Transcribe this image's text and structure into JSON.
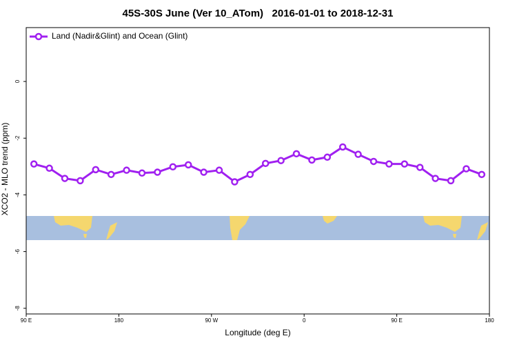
{
  "chart_data": {
    "type": "line",
    "title": "45S-30S June (Ver 10_ATom)   2016-01-01 to 2018-12-31",
    "x_label": "Longitude (deg E)",
    "y_label": "XCO2 - MLO trend (ppm)",
    "x": [
      97.5,
      112.5,
      127.5,
      142.5,
      157.5,
      172.5,
      187.5,
      202.5,
      217.5,
      232.5,
      247.5,
      262.5,
      277.5,
      292.5,
      307.5,
      322.5,
      337.5,
      352.5,
      367.5,
      382.5,
      397.5,
      412.5,
      427.5,
      442.5,
      457.5,
      472.5,
      487.5,
      502.5,
      517.5,
      532.5
    ],
    "series": [
      {
        "name": "Land (Nadir&Glint) and Ocean (Glint)",
        "color": "#a020f0",
        "values": [
          -2.91,
          -3.06,
          -3.42,
          -3.5,
          -3.11,
          -3.28,
          -3.13,
          -3.23,
          -3.2,
          -3.01,
          -2.94,
          -3.2,
          -3.13,
          -3.54,
          -3.28,
          -2.89,
          -2.79,
          -2.55,
          -2.77,
          -2.67,
          -2.31,
          -2.57,
          -2.82,
          -2.91,
          -2.91,
          -3.03,
          -3.42,
          -3.5,
          -3.08,
          -3.28
        ]
      }
    ],
    "xlim": [
      90,
      540
    ],
    "xticks": [
      {
        "value": 90,
        "label": "90 E"
      },
      180,
      {
        "value": 270,
        "label": "90 W"
      },
      {
        "value": 360,
        "label": "0"
      },
      {
        "value": 450,
        "label": "90 E"
      },
      {
        "value": 540,
        "label": "180"
      }
    ],
    "ylim": [
      -8.2,
      1.9
    ],
    "yticks": [
      0,
      -2,
      -4,
      -6,
      -8
    ],
    "legend": "top-left"
  }
}
